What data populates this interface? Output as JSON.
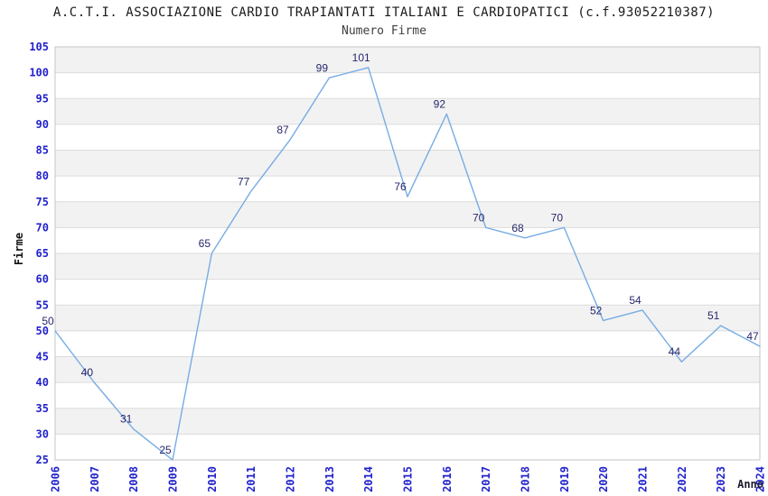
{
  "chart_data": {
    "type": "line",
    "title": "A.C.T.I. ASSOCIAZIONE CARDIO TRAPIANTATI ITALIANI E CARDIOPATICI (c.f.93052210387)",
    "subtitle": "Numero Firme",
    "xlabel": "Anno",
    "ylabel": "Firme",
    "categories": [
      "2006",
      "2007",
      "2008",
      "2009",
      "2010",
      "2011",
      "2012",
      "2013",
      "2014",
      "2015",
      "2016",
      "2017",
      "2018",
      "2019",
      "2020",
      "2021",
      "2022",
      "2023",
      "2024"
    ],
    "values": [
      50,
      40,
      31,
      25,
      65,
      77,
      87,
      99,
      101,
      76,
      92,
      70,
      68,
      70,
      52,
      54,
      44,
      51,
      47
    ],
    "ylim": [
      25,
      105
    ],
    "ytick_step": 5,
    "grid": "horizontal-bands-alternating",
    "legend": "none",
    "data_labels": "on",
    "colors": {
      "line": "#76ace4",
      "tick_label": "#2222cc",
      "data_label": "#26266b",
      "band_fill": "#f2f2f2",
      "grid_line": "#dcdcdc",
      "plot_border": "#c6c6c6",
      "title": "#1a1a1a",
      "subtitle": "#3f3f3f",
      "ylabel_color": "#111111",
      "xlabel_color": "#1c1c2e",
      "background": "#ffffff"
    }
  }
}
